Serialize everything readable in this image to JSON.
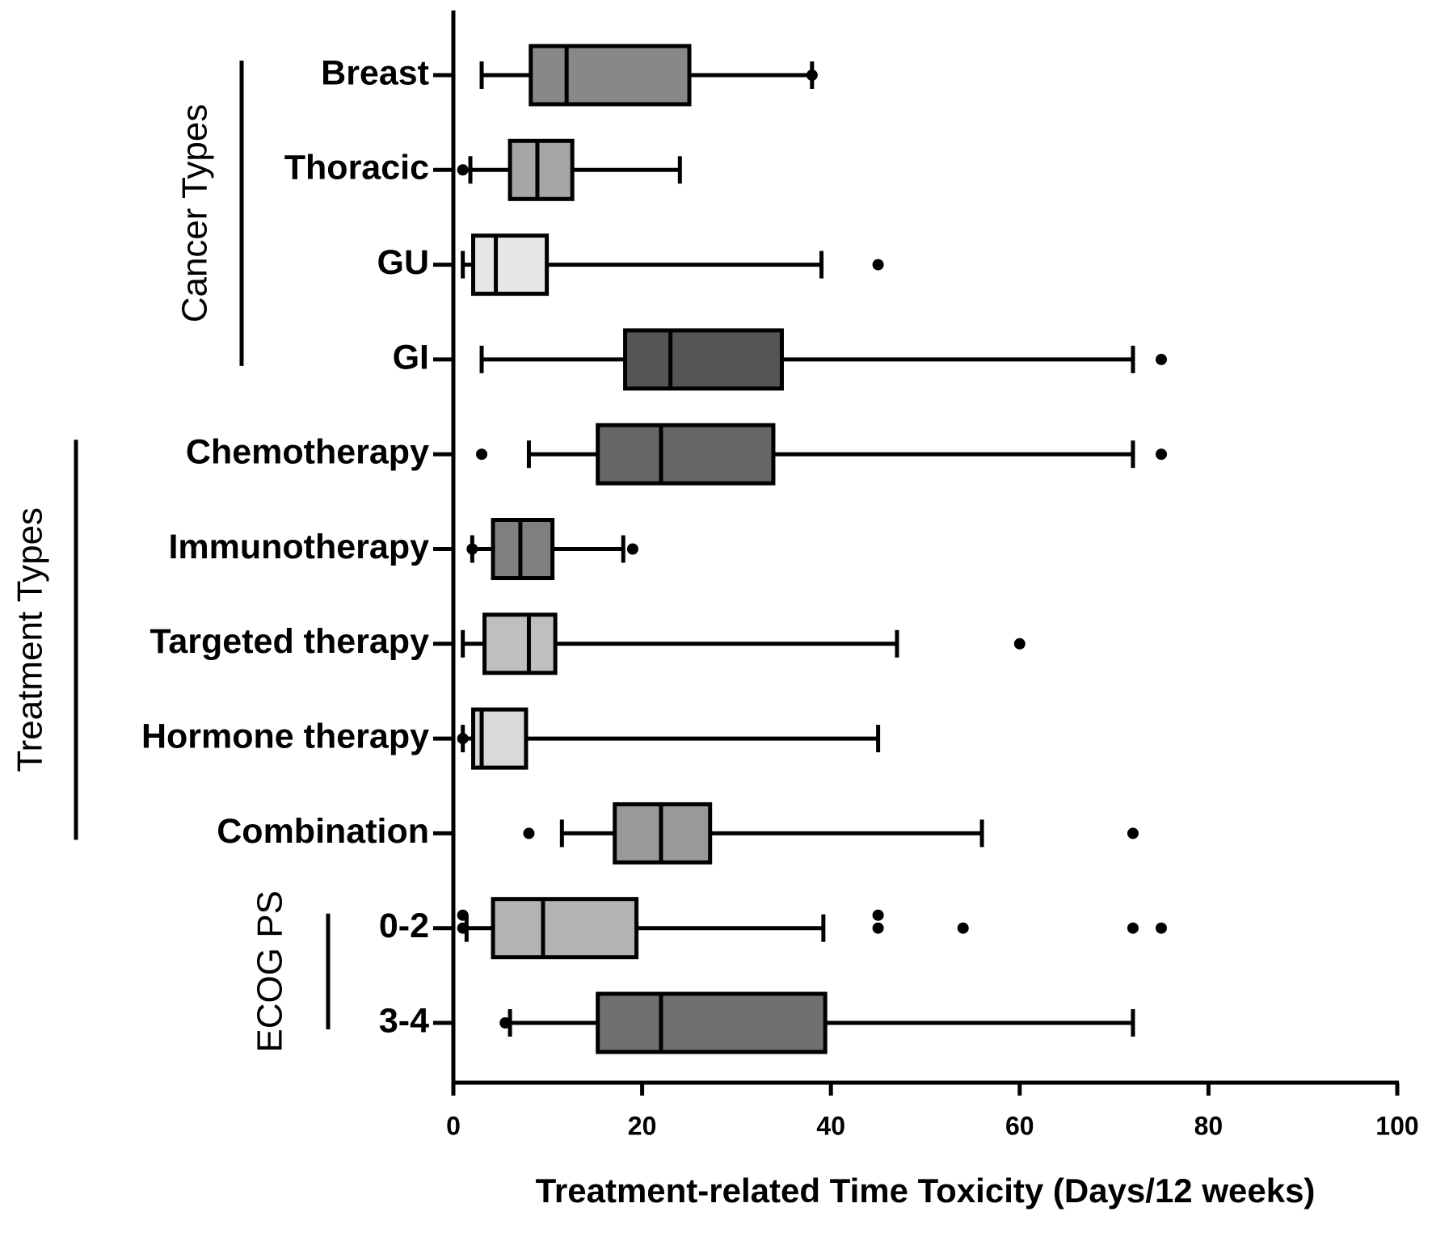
{
  "chart_data": {
    "type": "boxplot",
    "orientation": "horizontal",
    "x_label": "Treatment-related Time Toxicity (Days/12 weeks)",
    "xlim": [
      0,
      100
    ],
    "xticks": [
      0,
      20,
      40,
      60,
      80,
      100
    ],
    "groups": [
      {
        "label": "Cancer Types",
        "boxes": [
          {
            "name": "Breast",
            "color": "#888888",
            "whislo": 3,
            "q1": 8.2,
            "med": 12,
            "q3": 25,
            "whishi": 38,
            "fliers": [
              38
            ]
          },
          {
            "name": "Thoracic",
            "color": "#a6a6a6",
            "whislo": 1.8,
            "q1": 6,
            "med": 8.9,
            "q3": 12.6,
            "whishi": 24,
            "fliers": [
              1
            ]
          },
          {
            "name": "GU",
            "color": "#e6e6e6",
            "whislo": 1,
            "q1": 2.1,
            "med": 4.5,
            "q3": 9.9,
            "whishi": 39,
            "fliers": [
              45
            ]
          },
          {
            "name": "GI",
            "color": "#555555",
            "whislo": 3,
            "q1": 18.2,
            "med": 23,
            "q3": 34.8,
            "whishi": 72,
            "fliers": [
              75
            ]
          }
        ]
      },
      {
        "label": "Treatment Types",
        "boxes": [
          {
            "name": "Chemotherapy",
            "color": "#666666",
            "whislo": 8,
            "q1": 15.3,
            "med": 22,
            "q3": 33.9,
            "whishi": 72,
            "fliers": [
              3,
              75
            ]
          },
          {
            "name": "Immunotherapy",
            "color": "#808080",
            "whislo": 2,
            "q1": 4.2,
            "med": 7.1,
            "q3": 10.5,
            "whishi": 18,
            "fliers": [
              2,
              19
            ]
          },
          {
            "name": "Targeted therapy",
            "color": "#bfbfbf",
            "whislo": 1,
            "q1": 3.3,
            "med": 8,
            "q3": 10.8,
            "whishi": 47,
            "fliers": [
              60
            ]
          },
          {
            "name": "Hormone therapy",
            "color": "#d9d9d9",
            "whislo": 1,
            "q1": 2.1,
            "med": 3,
            "q3": 7.7,
            "whishi": 45,
            "fliers": [
              1
            ]
          },
          {
            "name": "Combination",
            "color": "#999999",
            "whislo": 11.5,
            "q1": 17.1,
            "med": 22,
            "q3": 27.2,
            "whishi": 56,
            "fliers": [
              8,
              72
            ]
          }
        ]
      },
      {
        "label": "ECOG PS",
        "boxes": [
          {
            "name": "0-2",
            "color": "#b3b3b3",
            "whislo": 1.4,
            "q1": 4.2,
            "med": 9.5,
            "q3": 19.4,
            "whishi": 39.2,
            "fliers": [
              1,
              1,
              45,
              45,
              54,
              72,
              75
            ]
          },
          {
            "name": "3-4",
            "color": "#707070",
            "whislo": 6,
            "q1": 15.3,
            "med": 22,
            "q3": 39.4,
            "whishi": 72,
            "fliers": [
              5.5
            ]
          }
        ]
      }
    ]
  }
}
